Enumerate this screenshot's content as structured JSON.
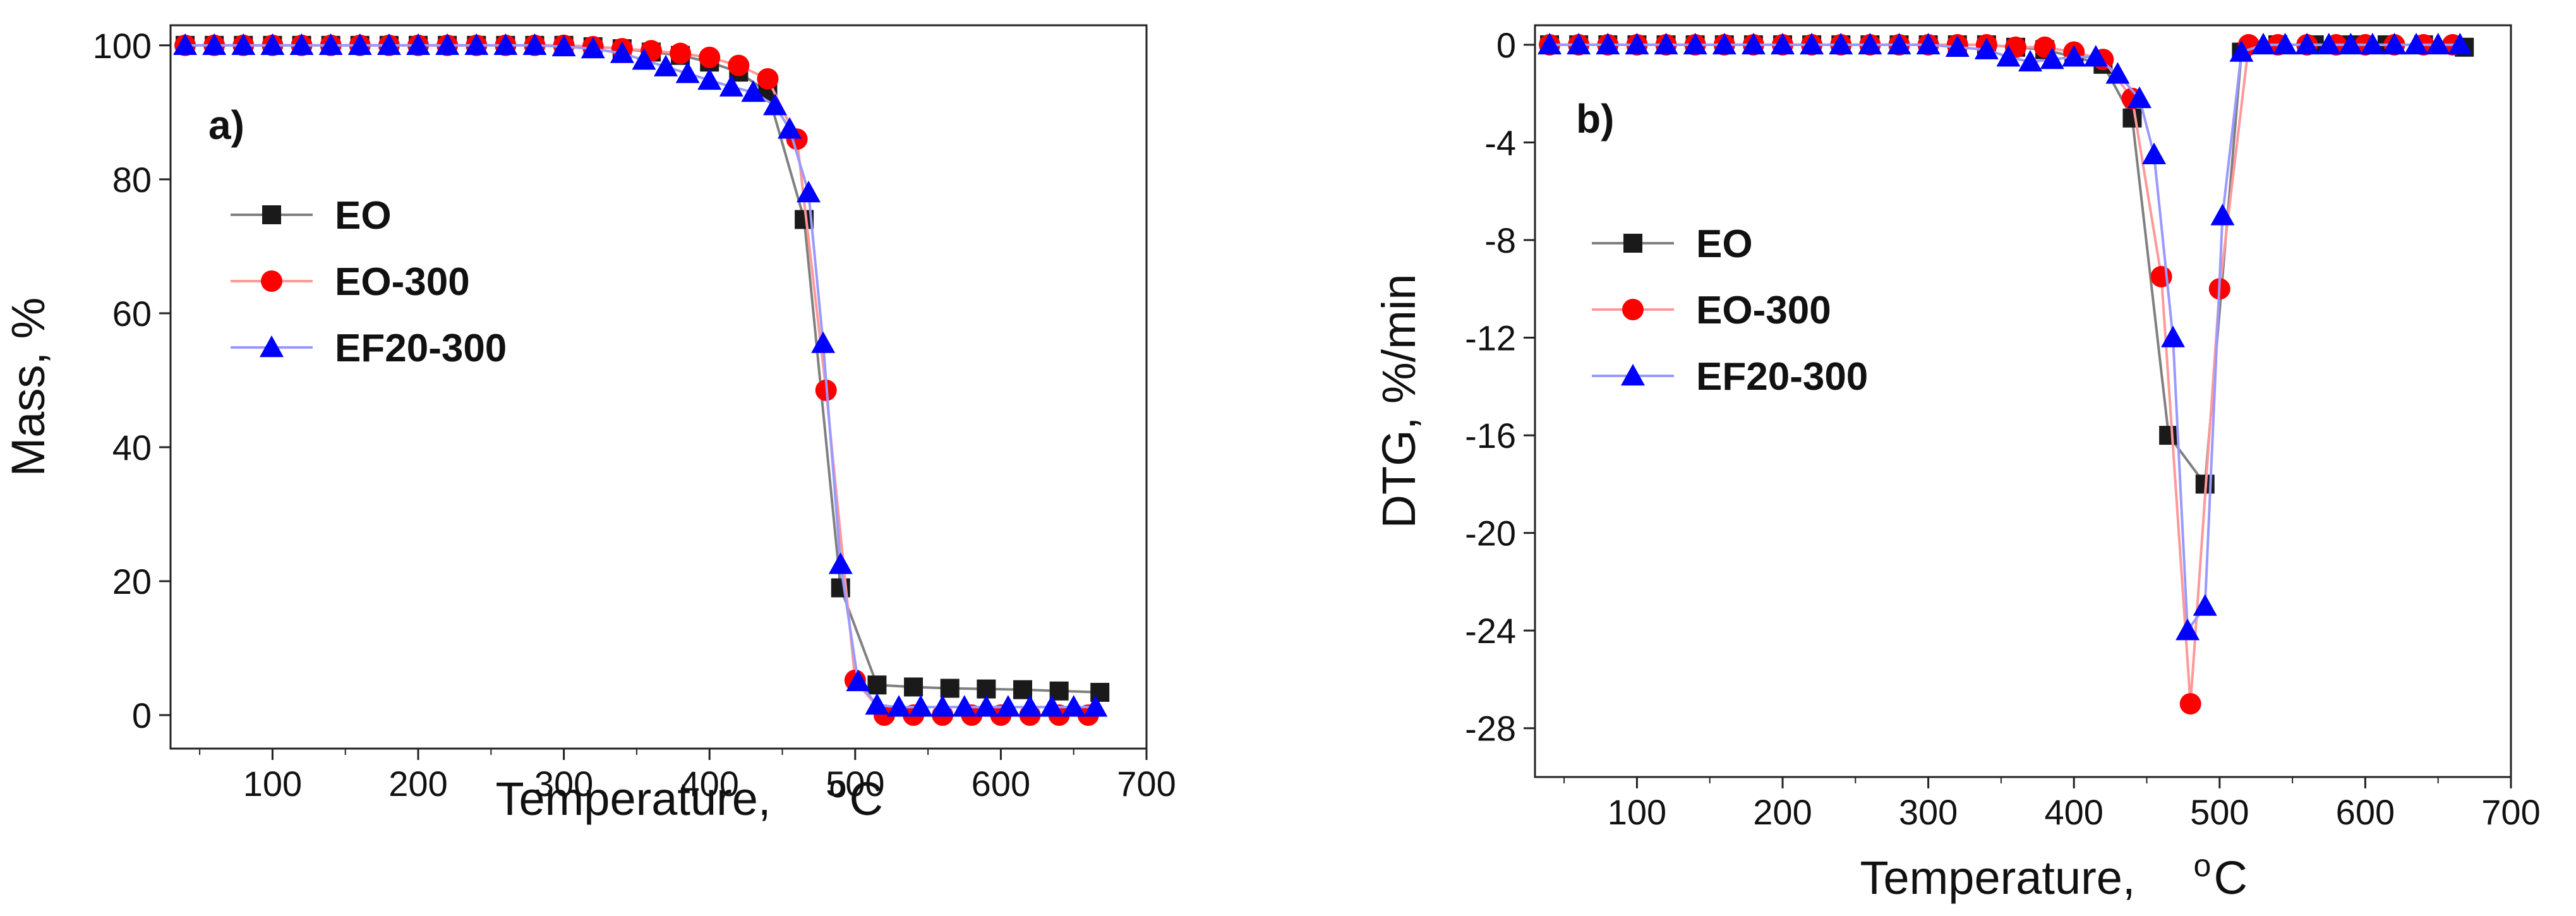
{
  "chart_data": [
    {
      "type": "line",
      "panel_label": "a)",
      "xlabel": "Temperature,",
      "xlabel_unit": "oC",
      "ylabel": "Mass,  %",
      "xlim": [
        30,
        700
      ],
      "ylim": [
        -5,
        103
      ],
      "xticks": [
        100,
        200,
        300,
        400,
        500,
        600,
        700
      ],
      "yticks": [
        0,
        20,
        40,
        60,
        80,
        100
      ],
      "legend_position": "left-middle",
      "series": [
        {
          "name": "EO",
          "color": "#1a1a1a",
          "line_color": "#808080",
          "marker": "square",
          "x": [
            40,
            60,
            80,
            100,
            120,
            140,
            160,
            180,
            200,
            220,
            240,
            260,
            280,
            300,
            320,
            340,
            360,
            380,
            400,
            420,
            440,
            465,
            490,
            515,
            540,
            565,
            590,
            615,
            640,
            668
          ],
          "y": [
            100,
            100,
            100,
            100,
            100,
            100,
            100,
            100,
            100,
            100,
            100,
            100,
            100,
            100,
            99.8,
            99.5,
            99.0,
            98.5,
            97.5,
            96,
            93,
            74,
            19,
            4.5,
            4.2,
            4.0,
            3.9,
            3.8,
            3.6,
            3.4
          ]
        },
        {
          "name": "EO-300",
          "color": "#ff0000",
          "line_color": "#ff9999",
          "marker": "circle",
          "x": [
            40,
            60,
            80,
            100,
            120,
            140,
            160,
            180,
            200,
            220,
            240,
            260,
            280,
            300,
            320,
            340,
            360,
            380,
            400,
            420,
            440,
            460,
            480,
            500,
            520,
            540,
            560,
            580,
            600,
            620,
            640,
            660
          ],
          "y": [
            100,
            100,
            100,
            100,
            100,
            100,
            100,
            100,
            100,
            100,
            100,
            100,
            100,
            100,
            99.8,
            99.5,
            99.2,
            98.8,
            98.2,
            97,
            95,
            86,
            48.5,
            5.2,
            0,
            0,
            0,
            0,
            0,
            0,
            0,
            0
          ]
        },
        {
          "name": "EF20-300",
          "color": "#0000ff",
          "line_color": "#9999ff",
          "marker": "triangle",
          "x": [
            40,
            60,
            80,
            100,
            120,
            140,
            160,
            180,
            200,
            220,
            240,
            260,
            280,
            300,
            320,
            340,
            355,
            370,
            385,
            400,
            415,
            430,
            445,
            455,
            468,
            478,
            490,
            502,
            515,
            530,
            545,
            560,
            575,
            590,
            605,
            620,
            635,
            650,
            665
          ],
          "y": [
            100,
            100,
            100,
            100,
            100,
            100,
            100,
            100,
            100,
            100,
            100,
            100,
            100,
            99.8,
            99.5,
            98.8,
            97.8,
            96.8,
            95.8,
            94.8,
            93.8,
            93,
            91,
            87.5,
            78,
            55.5,
            22.5,
            5,
            1.5,
            1.2,
            1.2,
            1.2,
            1.2,
            1.2,
            1.2,
            1.2,
            1.2,
            1.2,
            1.2
          ]
        }
      ],
      "legend": [
        "EO",
        "EO-300",
        "EF20-300"
      ]
    },
    {
      "type": "line",
      "panel_label": "b)",
      "xlabel": "Temperature,",
      "xlabel_unit": "oC",
      "ylabel": "DTG,  %/min",
      "xlim": [
        30,
        700
      ],
      "ylim": [
        -30,
        0.8
      ],
      "xticks": [
        100,
        200,
        300,
        400,
        500,
        600,
        700
      ],
      "yticks": [
        0,
        -4,
        -8,
        -12,
        -16,
        -20,
        -24,
        -28
      ],
      "legend_position": "left-middle",
      "series": [
        {
          "name": "EO",
          "color": "#1a1a1a",
          "line_color": "#808080",
          "marker": "square",
          "x": [
            40,
            60,
            80,
            100,
            120,
            140,
            160,
            180,
            200,
            220,
            240,
            260,
            280,
            300,
            320,
            340,
            360,
            380,
            400,
            420,
            440,
            465,
            490,
            515,
            540,
            565,
            590,
            615,
            640,
            668
          ],
          "y": [
            0,
            0,
            0,
            0,
            0,
            0,
            0,
            0,
            0,
            0,
            0,
            0,
            0,
            0,
            0,
            0,
            -0.1,
            -0.2,
            -0.5,
            -0.8,
            -3,
            -16,
            -18,
            -0.3,
            0,
            0,
            0,
            0,
            0,
            -0.1
          ]
        },
        {
          "name": "EO-300",
          "color": "#ff0000",
          "line_color": "#ff9999",
          "marker": "circle",
          "x": [
            40,
            60,
            80,
            100,
            120,
            140,
            160,
            180,
            200,
            220,
            240,
            260,
            280,
            300,
            320,
            340,
            360,
            380,
            400,
            420,
            440,
            460,
            480,
            500,
            520,
            540,
            560,
            580,
            600,
            620,
            640,
            660
          ],
          "y": [
            0,
            0,
            0,
            0,
            0,
            0,
            0,
            0,
            0,
            0,
            0,
            0,
            0,
            0,
            0,
            0,
            -0.1,
            -0.1,
            -0.3,
            -0.6,
            -2.2,
            -9.5,
            -27,
            -10,
            0,
            0,
            0,
            0,
            0,
            0,
            0,
            0
          ]
        },
        {
          "name": "EF20-300",
          "color": "#0000ff",
          "line_color": "#9999ff",
          "marker": "triangle",
          "x": [
            40,
            60,
            80,
            100,
            120,
            140,
            160,
            180,
            200,
            220,
            240,
            260,
            280,
            300,
            320,
            340,
            355,
            370,
            385,
            400,
            415,
            430,
            445,
            455,
            468,
            478,
            490,
            502,
            515,
            530,
            545,
            560,
            575,
            590,
            605,
            620,
            635,
            650,
            665
          ],
          "y": [
            0,
            0,
            0,
            0,
            0,
            0,
            0,
            0,
            0,
            0,
            0,
            0,
            0,
            0,
            -0.1,
            -0.2,
            -0.5,
            -0.7,
            -0.6,
            -0.5,
            -0.5,
            -1.2,
            -2.2,
            -4.5,
            -12,
            -24,
            -23,
            -7,
            -0.3,
            0,
            0,
            0,
            0,
            0,
            0,
            0,
            0,
            0,
            0
          ]
        }
      ],
      "legend": [
        "EO",
        "EO-300",
        "EF20-300"
      ]
    }
  ]
}
